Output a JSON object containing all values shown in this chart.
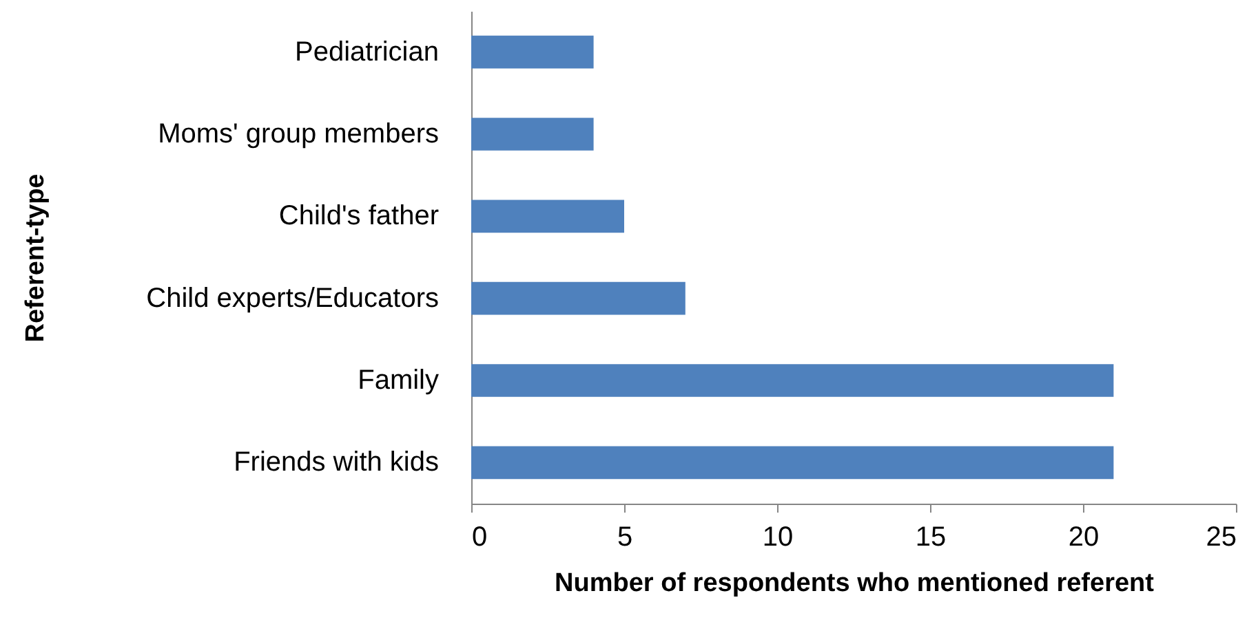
{
  "chart_data": {
    "type": "bar",
    "orientation": "horizontal",
    "categories": [
      "Pediatrician",
      "Moms' group members",
      "Child's father",
      "Child experts/Educators",
      "Family",
      "Friends with kids"
    ],
    "values": [
      4,
      4,
      5,
      7,
      21,
      21
    ],
    "color": "#4f81bd",
    "xlim": [
      0,
      25
    ],
    "xticks": [
      0,
      5,
      10,
      15,
      20,
      25
    ],
    "grid": false,
    "xlabel": "Number of respondents who mentioned referent",
    "ylabel": "Referent-type"
  }
}
